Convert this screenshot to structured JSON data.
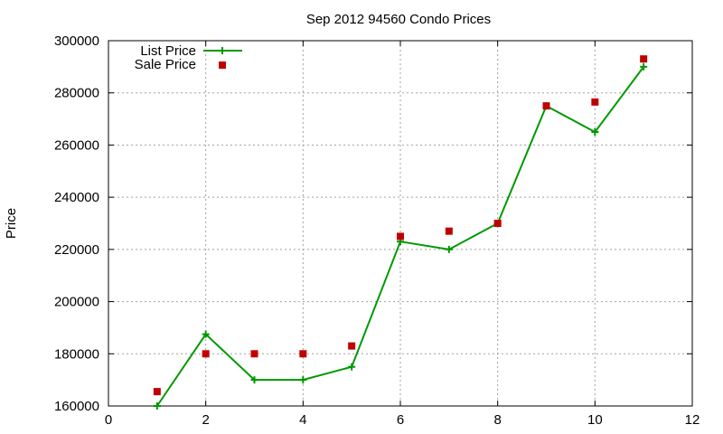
{
  "chart_data": {
    "type": "line",
    "title": "Sep 2012 94560 Condo Prices",
    "xlabel": "",
    "ylabel": "Price",
    "xlim": [
      0,
      12
    ],
    "ylim": [
      160000,
      300000
    ],
    "x_ticks": [
      "0",
      "2",
      "4",
      "6",
      "8",
      "10",
      "12"
    ],
    "y_ticks": [
      "160000",
      "180000",
      "200000",
      "220000",
      "240000",
      "260000",
      "280000",
      "300000"
    ],
    "grid": true,
    "legend_position": "top-left",
    "series": [
      {
        "name": "List Price",
        "style": "line-with-plus-markers",
        "color": "#009900",
        "x": [
          1,
          2,
          3,
          4,
          5,
          6,
          7,
          8,
          9,
          10,
          11
        ],
        "y": [
          160000,
          187500,
          170000,
          170000,
          175000,
          223000,
          220000,
          230000,
          275000,
          265000,
          290000
        ]
      },
      {
        "name": "Sale Price",
        "style": "square-markers",
        "color": "#c00000",
        "x": [
          1,
          2,
          3,
          4,
          5,
          6,
          7,
          8,
          9,
          10,
          11
        ],
        "y": [
          165500,
          180000,
          180000,
          180000,
          183000,
          225000,
          227000,
          230000,
          275000,
          276500,
          293000
        ]
      }
    ]
  }
}
